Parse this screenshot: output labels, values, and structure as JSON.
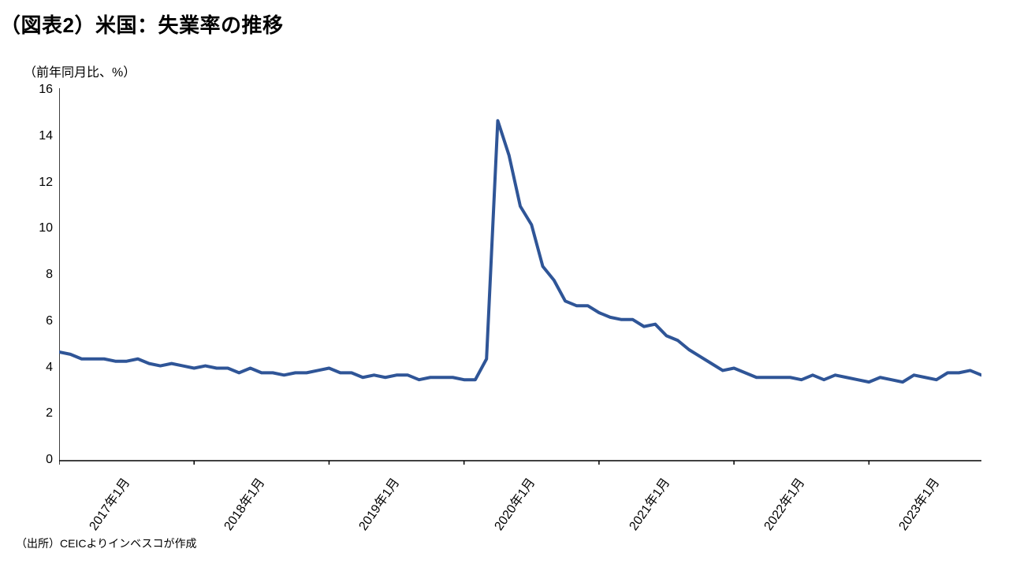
{
  "title": "（図表2）米国：失業率の推移",
  "subtitle": "（前年同月比、%）",
  "source": "（出所）CEICよりインベスコが作成",
  "chart": {
    "type": "line",
    "background_color": "#ffffff",
    "line_color": "#2f5597",
    "line_width": 4,
    "axis_color": "#000000",
    "axis_width": 1.5,
    "tick_length": 6,
    "x_labels": [
      "2017年1月",
      "2018年1月",
      "2019年1月",
      "2020年1月",
      "2021年1月",
      "2022年1月",
      "2023年1月"
    ],
    "x_major_indices": [
      0,
      12,
      24,
      36,
      48,
      60,
      72
    ],
    "x_count": 83,
    "y": {
      "min": 0,
      "max": 16,
      "ticks": [
        0,
        2,
        4,
        6,
        8,
        10,
        12,
        14,
        16
      ],
      "fontsize": 16
    },
    "x_fontsize": 16,
    "title_fontsize": 26,
    "subtitle_fontsize": 16,
    "source_fontsize": 14,
    "series": [
      {
        "name": "unemployment_rate",
        "values": [
          4.7,
          4.6,
          4.4,
          4.4,
          4.4,
          4.3,
          4.3,
          4.4,
          4.2,
          4.1,
          4.2,
          4.1,
          4.0,
          4.1,
          4.0,
          4.0,
          3.8,
          4.0,
          3.8,
          3.8,
          3.7,
          3.8,
          3.8,
          3.9,
          4.0,
          3.8,
          3.8,
          3.6,
          3.7,
          3.6,
          3.7,
          3.7,
          3.5,
          3.6,
          3.6,
          3.6,
          3.5,
          3.5,
          4.4,
          14.7,
          13.2,
          11.0,
          10.2,
          8.4,
          7.8,
          6.9,
          6.7,
          6.7,
          6.4,
          6.2,
          6.1,
          6.1,
          5.8,
          5.9,
          5.4,
          5.2,
          4.8,
          4.5,
          4.2,
          3.9,
          4.0,
          3.8,
          3.6,
          3.6,
          3.6,
          3.6,
          3.5,
          3.7,
          3.5,
          3.7,
          3.6,
          3.5,
          3.4,
          3.6,
          3.5,
          3.4,
          3.7,
          3.6,
          3.5,
          3.8,
          3.8,
          3.9,
          3.7
        ]
      }
    ]
  }
}
